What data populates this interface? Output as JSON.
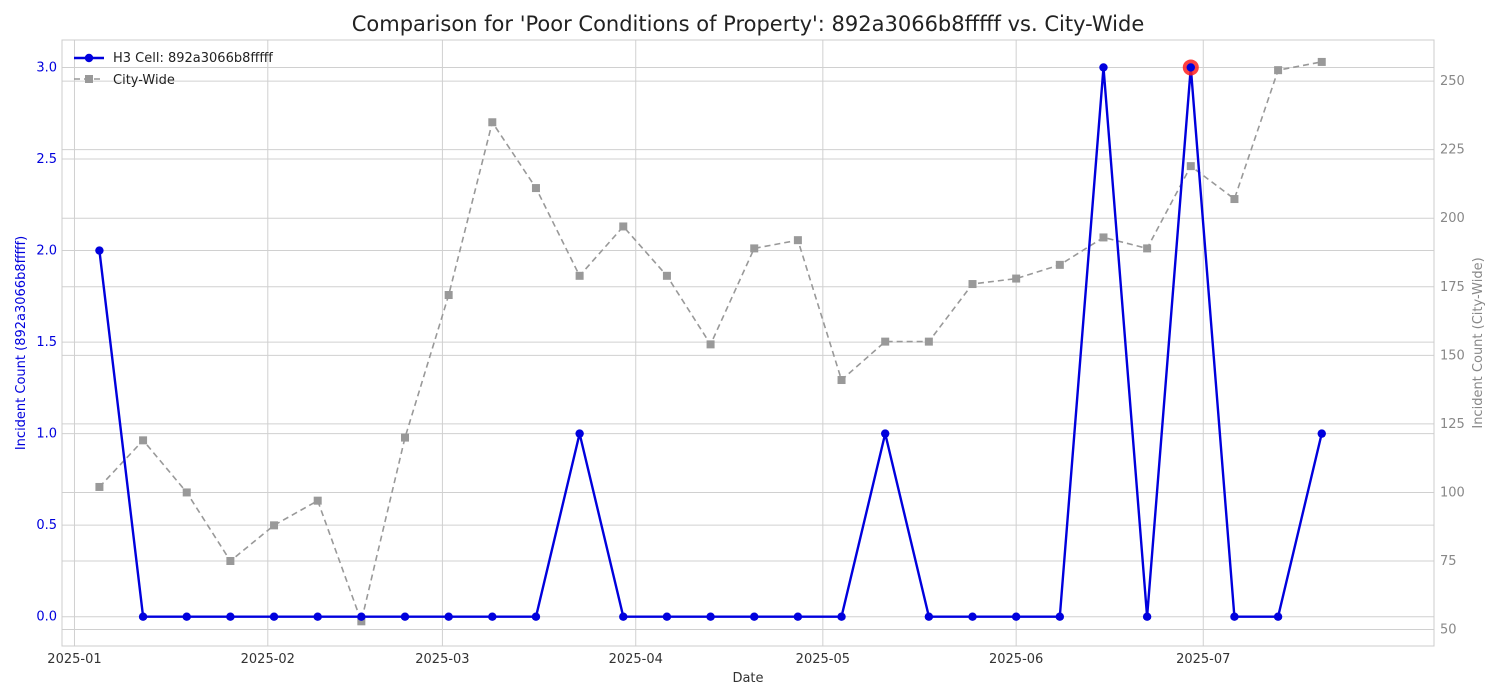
{
  "chart_data": {
    "type": "line",
    "title": "Comparison for 'Poor Conditions of Property': 892a3066b8fffff vs. City-Wide",
    "xlabel": "Date",
    "ylabel_left": "Incident Count (892a3066b8fffff)",
    "ylabel_right": "Incident Count (City-Wide)",
    "x": [
      "2025-01-05",
      "2025-01-12",
      "2025-01-19",
      "2025-01-26",
      "2025-02-02",
      "2025-02-09",
      "2025-02-16",
      "2025-02-23",
      "2025-03-02",
      "2025-03-09",
      "2025-03-16",
      "2025-03-23",
      "2025-03-30",
      "2025-04-06",
      "2025-04-13",
      "2025-04-20",
      "2025-04-27",
      "2025-05-04",
      "2025-05-11",
      "2025-05-18",
      "2025-05-25",
      "2025-06-01",
      "2025-06-08",
      "2025-06-15",
      "2025-06-22",
      "2025-06-29",
      "2025-07-06",
      "2025-07-13",
      "2025-07-20"
    ],
    "x_ticks": [
      "2025-01",
      "2025-02",
      "2025-03",
      "2025-04",
      "2025-05",
      "2025-06",
      "2025-07"
    ],
    "x_range": [
      "2024-12-30",
      "2025-08-07"
    ],
    "series": [
      {
        "name": "H3 Cell: 892a3066b8fffff",
        "axis": "left",
        "color": "#0000dd",
        "values": [
          2,
          0,
          0,
          0,
          0,
          0,
          0,
          0,
          0,
          0,
          0,
          1,
          0,
          0,
          0,
          0,
          0,
          0,
          1,
          0,
          0,
          0,
          0,
          3,
          0,
          3,
          0,
          0,
          1
        ]
      },
      {
        "name": "City-Wide",
        "axis": "right",
        "color": "#999999",
        "values": [
          102,
          119,
          100,
          75,
          88,
          97,
          53,
          120,
          172,
          235,
          211,
          179,
          197,
          179,
          154,
          189,
          192,
          141,
          155,
          155,
          176,
          178,
          183,
          193,
          189,
          219,
          207,
          254,
          257
        ]
      }
    ],
    "ylim_left": [
      -0.16,
      3.15
    ],
    "ylim_right": [
      44,
      265
    ],
    "yticks_left": [
      0.0,
      0.5,
      1.0,
      1.5,
      2.0,
      2.5,
      3.0
    ],
    "yticks_right": [
      50,
      75,
      100,
      125,
      150,
      175,
      200,
      225,
      250
    ],
    "highlight": {
      "x": "2025-06-29",
      "value": 3,
      "color": "#ff2020"
    },
    "legend": "top-left",
    "grid": true
  }
}
